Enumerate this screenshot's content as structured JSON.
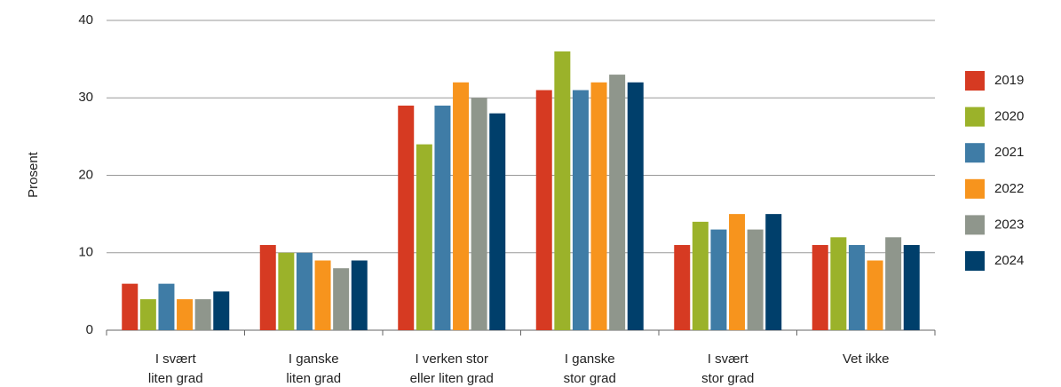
{
  "chart_data": {
    "type": "bar",
    "y_label": "Prosent",
    "categories": [
      "I svært\nliten grad",
      "I ganske\nliten grad",
      "I verken stor\neller liten grad",
      "I ganske\nstor grad",
      "I svært\nstor grad",
      "Vet ikke"
    ],
    "series": [
      {
        "name": "2019",
        "color": "#d63a22",
        "values": [
          6,
          11,
          29,
          31,
          11,
          11
        ]
      },
      {
        "name": "2020",
        "color": "#9bb22a",
        "values": [
          4,
          10,
          24,
          36,
          14,
          12
        ]
      },
      {
        "name": "2021",
        "color": "#3f7ca6",
        "values": [
          6,
          10,
          29,
          31,
          13,
          11
        ]
      },
      {
        "name": "2022",
        "color": "#f7941d",
        "values": [
          4,
          9,
          32,
          32,
          15,
          9
        ]
      },
      {
        "name": "2023",
        "color": "#8f968c",
        "values": [
          4,
          8,
          30,
          33,
          13,
          12
        ]
      },
      {
        "name": "2024",
        "color": "#003f6b",
        "values": [
          5,
          9,
          28,
          32,
          15,
          11
        ]
      }
    ],
    "ylim": [
      0,
      40
    ],
    "yticks": [
      0,
      10,
      20,
      30,
      40
    ],
    "grid": true,
    "legend": "right"
  }
}
